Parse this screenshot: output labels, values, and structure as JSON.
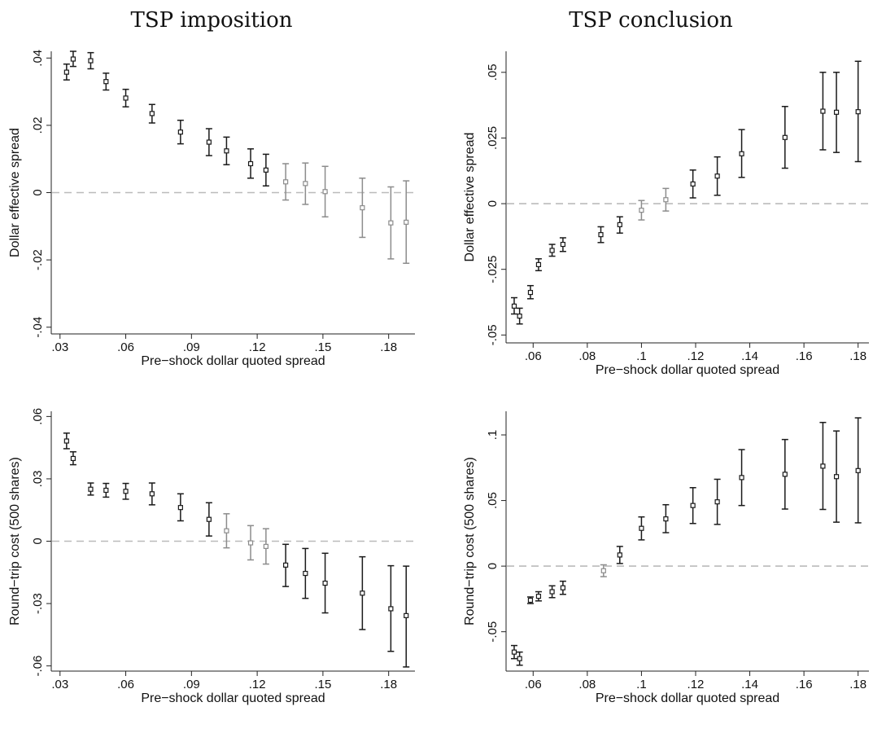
{
  "column_titles": [
    "TSP imposition",
    "TSP conclusion"
  ],
  "colors": {
    "significant": "#1a1a1a",
    "insignificant": "#8c8c8c",
    "zero_line": "#bbbbbb"
  },
  "chart_data": [
    {
      "id": "imposition-effective",
      "type": "scatter",
      "title": "TSP imposition",
      "xlabel": "Pre−shock dollar quoted spread",
      "ylabel": "Dollar effective spread",
      "xlim": [
        0.026,
        0.192
      ],
      "ylim": [
        -0.042,
        0.042
      ],
      "xticks": [
        0.03,
        0.06,
        0.09,
        0.12,
        0.15,
        0.18
      ],
      "xtick_labels": [
        ".03",
        ".06",
        ".09",
        ".12",
        ".15",
        ".18"
      ],
      "yticks": [
        -0.04,
        -0.02,
        0,
        0.02,
        0.04
      ],
      "ytick_labels": [
        "-.04",
        "-.02",
        "0",
        ".02",
        ".04"
      ],
      "zero_line": true,
      "points": [
        {
          "x": 0.033,
          "y": 0.0358,
          "lo": 0.0335,
          "hi": 0.0382,
          "sig": true
        },
        {
          "x": 0.036,
          "y": 0.0397,
          "lo": 0.0375,
          "hi": 0.042,
          "sig": true
        },
        {
          "x": 0.044,
          "y": 0.0392,
          "lo": 0.0368,
          "hi": 0.0416,
          "sig": true
        },
        {
          "x": 0.051,
          "y": 0.033,
          "lo": 0.0305,
          "hi": 0.0355,
          "sig": true
        },
        {
          "x": 0.06,
          "y": 0.0281,
          "lo": 0.0255,
          "hi": 0.0307,
          "sig": true
        },
        {
          "x": 0.072,
          "y": 0.0235,
          "lo": 0.0207,
          "hi": 0.0262,
          "sig": true
        },
        {
          "x": 0.085,
          "y": 0.018,
          "lo": 0.0145,
          "hi": 0.0215,
          "sig": true
        },
        {
          "x": 0.098,
          "y": 0.015,
          "lo": 0.011,
          "hi": 0.019,
          "sig": true
        },
        {
          "x": 0.106,
          "y": 0.0124,
          "lo": 0.0083,
          "hi": 0.0165,
          "sig": true
        },
        {
          "x": 0.117,
          "y": 0.0086,
          "lo": 0.0043,
          "hi": 0.013,
          "sig": true
        },
        {
          "x": 0.124,
          "y": 0.0067,
          "lo": 0.002,
          "hi": 0.0114,
          "sig": true
        },
        {
          "x": 0.133,
          "y": 0.0032,
          "lo": -0.0022,
          "hi": 0.0086,
          "sig": false
        },
        {
          "x": 0.142,
          "y": 0.0027,
          "lo": -0.0035,
          "hi": 0.0088,
          "sig": false
        },
        {
          "x": 0.151,
          "y": 0.0003,
          "lo": -0.0072,
          "hi": 0.0078,
          "sig": false
        },
        {
          "x": 0.168,
          "y": -0.0045,
          "lo": -0.0133,
          "hi": 0.0043,
          "sig": false
        },
        {
          "x": 0.181,
          "y": -0.009,
          "lo": -0.0197,
          "hi": 0.0017,
          "sig": false
        },
        {
          "x": 0.188,
          "y": -0.0088,
          "lo": -0.021,
          "hi": 0.0035,
          "sig": false
        }
      ]
    },
    {
      "id": "conclusion-effective",
      "type": "scatter",
      "title": "TSP conclusion",
      "xlabel": "Pre−shock dollar quoted spread",
      "ylabel": "Dollar effective spread",
      "xlim": [
        0.05,
        0.184
      ],
      "ylim": [
        -0.053,
        0.058
      ],
      "xticks": [
        0.06,
        0.08,
        0.1,
        0.12,
        0.14,
        0.16,
        0.18
      ],
      "xtick_labels": [
        ".06",
        ".08",
        ".1",
        ".12",
        ".14",
        ".16",
        ".18"
      ],
      "yticks": [
        -0.05,
        -0.025,
        0,
        0.025,
        0.05
      ],
      "ytick_labels": [
        "-.05",
        "-.025",
        "0",
        ".025",
        ".05"
      ],
      "zero_line": true,
      "points": [
        {
          "x": 0.053,
          "y": -0.039,
          "lo": -0.042,
          "hi": -0.0358,
          "sig": true
        },
        {
          "x": 0.055,
          "y": -0.0428,
          "lo": -0.0458,
          "hi": -0.0398,
          "sig": true
        },
        {
          "x": 0.059,
          "y": -0.0338,
          "lo": -0.0362,
          "hi": -0.0312,
          "sig": true
        },
        {
          "x": 0.062,
          "y": -0.0232,
          "lo": -0.0255,
          "hi": -0.021,
          "sig": true
        },
        {
          "x": 0.067,
          "y": -0.0178,
          "lo": -0.02,
          "hi": -0.0155,
          "sig": true
        },
        {
          "x": 0.071,
          "y": -0.0155,
          "lo": -0.0182,
          "hi": -0.013,
          "sig": true
        },
        {
          "x": 0.085,
          "y": -0.0118,
          "lo": -0.0148,
          "hi": -0.0088,
          "sig": true
        },
        {
          "x": 0.092,
          "y": -0.008,
          "lo": -0.0112,
          "hi": -0.005,
          "sig": true
        },
        {
          "x": 0.1,
          "y": -0.0025,
          "lo": -0.0062,
          "hi": 0.0012,
          "sig": false
        },
        {
          "x": 0.109,
          "y": 0.0015,
          "lo": -0.0028,
          "hi": 0.0058,
          "sig": false
        },
        {
          "x": 0.119,
          "y": 0.0075,
          "lo": 0.0022,
          "hi": 0.0128,
          "sig": true
        },
        {
          "x": 0.128,
          "y": 0.0105,
          "lo": 0.0032,
          "hi": 0.0178,
          "sig": true
        },
        {
          "x": 0.137,
          "y": 0.019,
          "lo": 0.01,
          "hi": 0.0282,
          "sig": true
        },
        {
          "x": 0.153,
          "y": 0.0252,
          "lo": 0.0135,
          "hi": 0.037,
          "sig": true
        },
        {
          "x": 0.167,
          "y": 0.0352,
          "lo": 0.0205,
          "hi": 0.05,
          "sig": true
        },
        {
          "x": 0.172,
          "y": 0.0348,
          "lo": 0.0195,
          "hi": 0.05,
          "sig": true
        },
        {
          "x": 0.18,
          "y": 0.035,
          "lo": 0.016,
          "hi": 0.0542,
          "sig": true
        }
      ]
    },
    {
      "id": "imposition-roundtrip",
      "type": "scatter",
      "title": "",
      "xlabel": "Pre−shock dollar quoted spread",
      "ylabel": "Round−trip cost (500 shares)",
      "xlim": [
        0.026,
        0.192
      ],
      "ylim": [
        -0.0625,
        0.0625
      ],
      "xticks": [
        0.03,
        0.06,
        0.09,
        0.12,
        0.15,
        0.18
      ],
      "xtick_labels": [
        ".03",
        ".06",
        ".09",
        ".12",
        ".15",
        ".18"
      ],
      "yticks": [
        -0.06,
        -0.03,
        0,
        0.03,
        0.06
      ],
      "ytick_labels": [
        "-.06",
        "-.03",
        "0",
        ".03",
        ".06"
      ],
      "zero_line": true,
      "points": [
        {
          "x": 0.033,
          "y": 0.0482,
          "lo": 0.0445,
          "hi": 0.052,
          "sig": true
        },
        {
          "x": 0.036,
          "y": 0.0398,
          "lo": 0.0368,
          "hi": 0.043,
          "sig": true
        },
        {
          "x": 0.044,
          "y": 0.025,
          "lo": 0.0222,
          "hi": 0.028,
          "sig": true
        },
        {
          "x": 0.051,
          "y": 0.0245,
          "lo": 0.0212,
          "hi": 0.0278,
          "sig": true
        },
        {
          "x": 0.06,
          "y": 0.024,
          "lo": 0.0202,
          "hi": 0.0278,
          "sig": true
        },
        {
          "x": 0.072,
          "y": 0.0228,
          "lo": 0.0175,
          "hi": 0.028,
          "sig": true
        },
        {
          "x": 0.085,
          "y": 0.0162,
          "lo": 0.0098,
          "hi": 0.0228,
          "sig": true
        },
        {
          "x": 0.098,
          "y": 0.0105,
          "lo": 0.0025,
          "hi": 0.0185,
          "sig": true
        },
        {
          "x": 0.106,
          "y": 0.005,
          "lo": -0.0032,
          "hi": 0.0132,
          "sig": false
        },
        {
          "x": 0.117,
          "y": -0.0008,
          "lo": -0.009,
          "hi": 0.0075,
          "sig": false
        },
        {
          "x": 0.124,
          "y": -0.0025,
          "lo": -0.011,
          "hi": 0.006,
          "sig": false
        },
        {
          "x": 0.133,
          "y": -0.0115,
          "lo": -0.0218,
          "hi": -0.0015,
          "sig": true
        },
        {
          "x": 0.142,
          "y": -0.0155,
          "lo": -0.0275,
          "hi": -0.0035,
          "sig": true
        },
        {
          "x": 0.151,
          "y": -0.0202,
          "lo": -0.0345,
          "hi": -0.0058,
          "sig": true
        },
        {
          "x": 0.168,
          "y": -0.025,
          "lo": -0.0425,
          "hi": -0.0075,
          "sig": true
        },
        {
          "x": 0.181,
          "y": -0.0325,
          "lo": -0.053,
          "hi": -0.0118,
          "sig": true
        },
        {
          "x": 0.188,
          "y": -0.0358,
          "lo": -0.0605,
          "hi": -0.012,
          "sig": true
        }
      ]
    },
    {
      "id": "conclusion-roundtrip",
      "type": "scatter",
      "title": "",
      "xlabel": "Pre−shock dollar quoted spread",
      "ylabel": "Round−trip cost (500 shares)",
      "xlim": [
        0.05,
        0.184
      ],
      "ylim": [
        -0.08,
        0.118
      ],
      "xticks": [
        0.06,
        0.08,
        0.1,
        0.12,
        0.14,
        0.16,
        0.18
      ],
      "xtick_labels": [
        ".06",
        ".08",
        ".1",
        ".12",
        ".14",
        ".16",
        ".18"
      ],
      "yticks": [
        -0.05,
        0,
        0.05,
        0.1
      ],
      "ytick_labels": [
        "-.05",
        "0",
        ".05",
        ".1"
      ],
      "zero_line": true,
      "points": [
        {
          "x": 0.053,
          "y": -0.0655,
          "lo": -0.0705,
          "hi": -0.0605,
          "sig": true
        },
        {
          "x": 0.055,
          "y": -0.0705,
          "lo": -0.0755,
          "hi": -0.0655,
          "sig": true
        },
        {
          "x": 0.059,
          "y": -0.026,
          "lo": -0.0285,
          "hi": -0.0235,
          "sig": true
        },
        {
          "x": 0.062,
          "y": -0.023,
          "lo": -0.0265,
          "hi": -0.0195,
          "sig": true
        },
        {
          "x": 0.067,
          "y": -0.0195,
          "lo": -0.024,
          "hi": -0.015,
          "sig": true
        },
        {
          "x": 0.071,
          "y": -0.0165,
          "lo": -0.0215,
          "hi": -0.0115,
          "sig": true
        },
        {
          "x": 0.086,
          "y": -0.0035,
          "lo": -0.008,
          "hi": 0.001,
          "sig": false
        },
        {
          "x": 0.092,
          "y": 0.0085,
          "lo": 0.002,
          "hi": 0.015,
          "sig": true
        },
        {
          "x": 0.1,
          "y": 0.0288,
          "lo": 0.02,
          "hi": 0.0375,
          "sig": true
        },
        {
          "x": 0.109,
          "y": 0.036,
          "lo": 0.0255,
          "hi": 0.0468,
          "sig": true
        },
        {
          "x": 0.119,
          "y": 0.0462,
          "lo": 0.0325,
          "hi": 0.0598,
          "sig": true
        },
        {
          "x": 0.128,
          "y": 0.049,
          "lo": 0.0318,
          "hi": 0.0662,
          "sig": true
        },
        {
          "x": 0.137,
          "y": 0.0675,
          "lo": 0.0462,
          "hi": 0.0888,
          "sig": true
        },
        {
          "x": 0.153,
          "y": 0.07,
          "lo": 0.0435,
          "hi": 0.0965,
          "sig": true
        },
        {
          "x": 0.167,
          "y": 0.0762,
          "lo": 0.0432,
          "hi": 0.1095,
          "sig": true
        },
        {
          "x": 0.172,
          "y": 0.0682,
          "lo": 0.0335,
          "hi": 0.103,
          "sig": true
        },
        {
          "x": 0.18,
          "y": 0.0728,
          "lo": 0.033,
          "hi": 0.113,
          "sig": true
        }
      ]
    }
  ]
}
